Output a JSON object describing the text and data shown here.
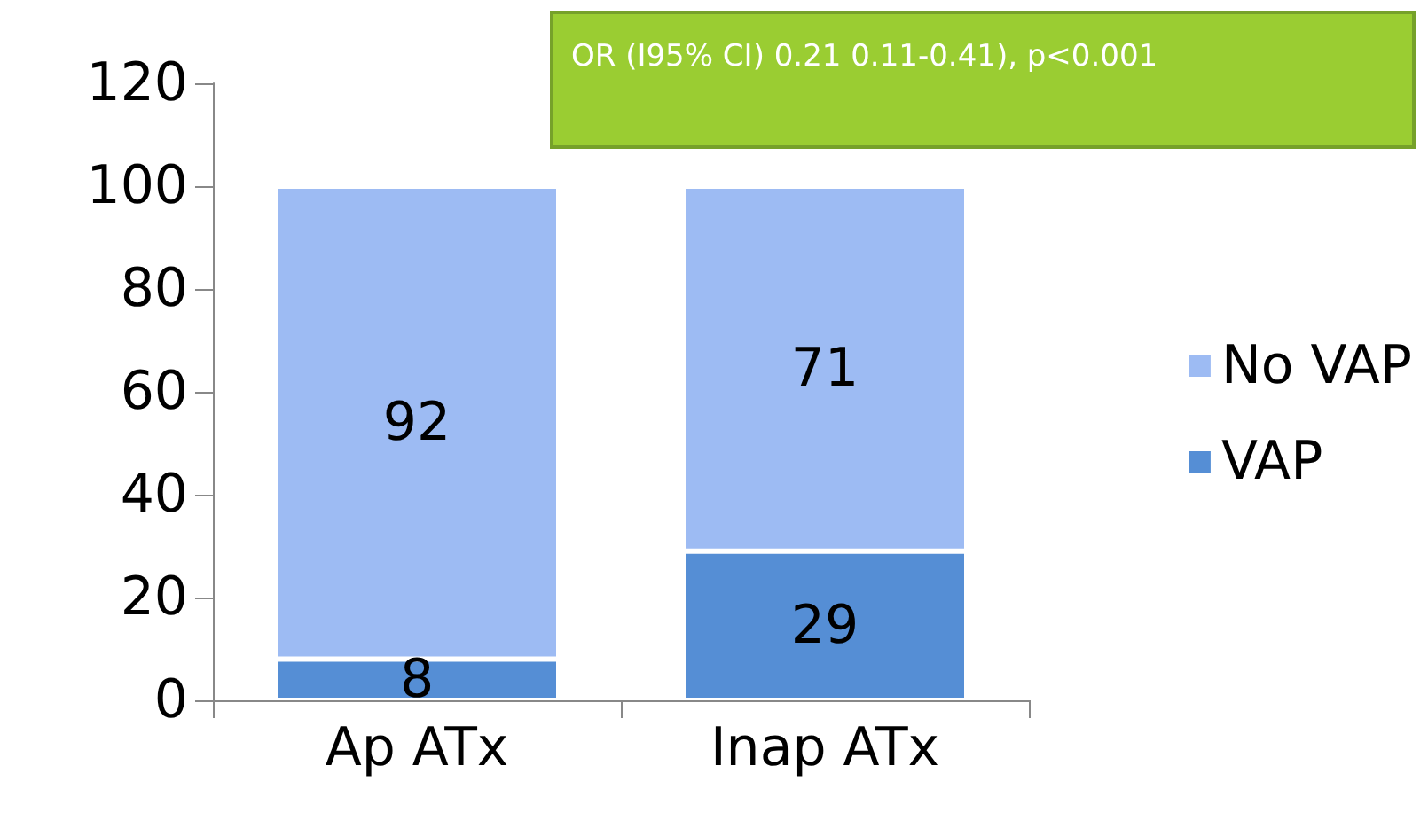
{
  "chart_data": {
    "type": "bar",
    "stacked": true,
    "categories": [
      "Ap ATx",
      "Inap ATx"
    ],
    "series": [
      {
        "name": "VAP",
        "color": "#558ed5",
        "values": [
          8,
          29
        ]
      },
      {
        "name": "No VAP",
        "color": "#9dbbf3",
        "values": [
          92,
          71
        ]
      }
    ],
    "ylim": [
      0,
      120
    ],
    "yticks": [
      0,
      20,
      40,
      60,
      80,
      100,
      120
    ],
    "grid": false,
    "legend": "right",
    "data_labels": true,
    "annotations": [
      "OR (I95% CI) 0.21 0.11-0.41), p<0.001"
    ]
  }
}
